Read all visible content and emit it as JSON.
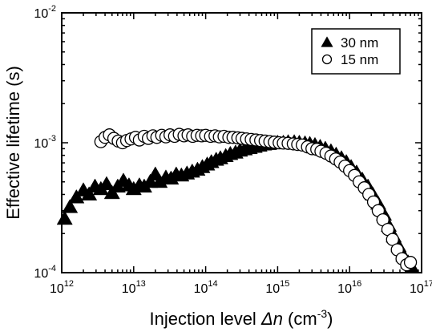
{
  "chart_data": {
    "type": "scatter",
    "xlabel": {
      "main": "Injection level ",
      "italic": "Δn",
      "unit_open": " (cm",
      "unit_exp": "-3",
      "unit_close": ")"
    },
    "ylabel": "Effective lifetime (s)",
    "x_scale": "log",
    "y_scale": "log",
    "xlim": [
      1000000000000.0,
      1e+17
    ],
    "ylim": [
      0.0001,
      0.01
    ],
    "x_ticks": [
      {
        "base": "10",
        "exp": "12"
      },
      {
        "base": "10",
        "exp": "13"
      },
      {
        "base": "10",
        "exp": "14"
      },
      {
        "base": "10",
        "exp": "15"
      },
      {
        "base": "10",
        "exp": "16"
      },
      {
        "base": "10",
        "exp": "17"
      }
    ],
    "y_ticks": [
      {
        "base": "10",
        "exp": "-4"
      },
      {
        "base": "10",
        "exp": "-3"
      },
      {
        "base": "10",
        "exp": "-2"
      }
    ],
    "grid": false,
    "legend_position": "top-right",
    "series": [
      {
        "name": "30 nm",
        "marker": "filled-triangle",
        "color": "#000000",
        "points": [
          [
            1100000000000.0,
            0.00026
          ],
          [
            1300000000000.0,
            0.00032
          ],
          [
            1600000000000.0,
            0.00038
          ],
          [
            2000000000000.0,
            0.00043
          ],
          [
            2400000000000.0,
            0.0004
          ],
          [
            2900000000000.0,
            0.00046
          ],
          [
            3500000000000.0,
            0.00044
          ],
          [
            4200000000000.0,
            0.00048
          ],
          [
            5000000000000.0,
            0.00041
          ],
          [
            6000000000000.0,
            0.00046
          ],
          [
            7200000000000.0,
            0.00051
          ],
          [
            8600000000000.0,
            0.00047
          ],
          [
            10000000000000.0,
            0.00044
          ],
          [
            12000000000000.0,
            0.00047
          ],
          [
            14000000000000.0,
            0.00046
          ],
          [
            17000000000000.0,
            0.0005
          ],
          [
            20000000000000.0,
            0.00057
          ],
          [
            23000000000000.0,
            0.0005
          ],
          [
            28000000000000.0,
            0.00054
          ],
          [
            33000000000000.0,
            0.00053
          ],
          [
            39000000000000.0,
            0.00057
          ],
          [
            46000000000000.0,
            0.00056
          ],
          [
            55000000000000.0,
            0.00058
          ],
          [
            65000000000000.0,
            0.0006
          ],
          [
            77000000000000.0,
            0.00062
          ],
          [
            90000000000000.0,
            0.00065
          ],
          [
            105000000000000.0,
            0.00068
          ],
          [
            120000000000000.0,
            0.00071
          ],
          [
            140000000000000.0,
            0.00074
          ],
          [
            160000000000000.0,
            0.00076
          ],
          [
            190000000000000.0,
            0.00079
          ],
          [
            220000000000000.0,
            0.00082
          ],
          [
            260000000000000.0,
            0.00084
          ],
          [
            300000000000000.0,
            0.00087
          ],
          [
            350000000000000.0,
            0.00089
          ],
          [
            410000000000000.0,
            0.00091
          ],
          [
            480000000000000.0,
            0.00093
          ],
          [
            560000000000000.0,
            0.00095
          ],
          [
            650000000000000.0,
            0.00097
          ],
          [
            760000000000000.0,
            0.00098
          ],
          [
            890000000000000.0,
            0.00099
          ],
          [
            1000000000000000.0,
            0.001
          ],
          [
            1200000000000000.0,
            0.001
          ],
          [
            1400000000000000.0,
            0.00101
          ],
          [
            1700000000000000.0,
            0.00101
          ],
          [
            2000000000000000.0,
            0.001
          ],
          [
            2400000000000000.0,
            0.00099
          ],
          [
            2800000000000000.0,
            0.00098
          ],
          [
            3300000000000000.0,
            0.00096
          ],
          [
            3900000000000000.0,
            0.00093
          ],
          [
            4600000000000000.0,
            0.0009
          ],
          [
            5500000000000000.0,
            0.00086
          ],
          [
            6500000000000000.0,
            0.00081
          ],
          [
            7700000000000000.0,
            0.00076
          ],
          [
            9000000000000000.0,
            0.00071
          ],
          [
            1.05e+16,
            0.00065
          ],
          [
            1.25e+16,
            0.00059
          ],
          [
            1.5e+16,
            0.00052
          ],
          [
            1.8e+16,
            0.00046
          ],
          [
            2.1e+16,
            0.0004
          ],
          [
            2.5e+16,
            0.00034
          ],
          [
            3e+16,
            0.00028
          ],
          [
            3.5e+16,
            0.00023
          ],
          [
            4.1e+16,
            0.00019
          ],
          [
            4.8e+16,
            0.00016
          ],
          [
            5.6e+16,
            0.000135
          ],
          [
            6.5e+16,
            0.00012
          ],
          [
            7.3e+16,
            0.00011
          ]
        ]
      },
      {
        "name": "15 nm",
        "marker": "open-circle",
        "color": "#000000",
        "points": [
          [
            3500000000000.0,
            0.00102
          ],
          [
            4000000000000.0,
            0.0011
          ],
          [
            4600000000000.0,
            0.00115
          ],
          [
            5300000000000.0,
            0.00108
          ],
          [
            6100000000000.0,
            0.00103
          ],
          [
            7000000000000.0,
            0.001
          ],
          [
            8000000000000.0,
            0.00104
          ],
          [
            9200000000000.0,
            0.00107
          ],
          [
            10600000000000.0,
            0.0011
          ],
          [
            12000000000000.0,
            0.00105
          ],
          [
            14000000000000.0,
            0.00112
          ],
          [
            16000000000000.0,
            0.00108
          ],
          [
            18500000000000.0,
            0.00113
          ],
          [
            21000000000000.0,
            0.0011
          ],
          [
            24500000000000.0,
            0.00114
          ],
          [
            28000000000000.0,
            0.00111
          ],
          [
            32000000000000.0,
            0.00115
          ],
          [
            37000000000000.0,
            0.00112
          ],
          [
            43000000000000.0,
            0.00116
          ],
          [
            50000000000000.0,
            0.00113
          ],
          [
            57000000000000.0,
            0.00115
          ],
          [
            66000000000000.0,
            0.00112
          ],
          [
            76000000000000.0,
            0.00114
          ],
          [
            88000000000000.0,
            0.00113
          ],
          [
            100000000000000.0,
            0.00114
          ],
          [
            117000000000000.0,
            0.00112
          ],
          [
            135000000000000.0,
            0.00113
          ],
          [
            155000000000000.0,
            0.00111
          ],
          [
            180000000000000.0,
            0.00112
          ],
          [
            210000000000000.0,
            0.0011
          ],
          [
            240000000000000.0,
            0.0011
          ],
          [
            280000000000000.0,
            0.00109
          ],
          [
            320000000000000.0,
            0.00108
          ],
          [
            370000000000000.0,
            0.00107
          ],
          [
            430000000000000.0,
            0.00106
          ],
          [
            500000000000000.0,
            0.00105
          ],
          [
            580000000000000.0,
            0.00104
          ],
          [
            670000000000000.0,
            0.00103
          ],
          [
            780000000000000.0,
            0.00102
          ],
          [
            900000000000000.0,
            0.00101
          ],
          [
            1050000000000000.0,
            0.001
          ],
          [
            1200000000000000.0,
            0.000995
          ],
          [
            1400000000000000.0,
            0.00099
          ],
          [
            1650000000000000.0,
            0.00098
          ],
          [
            1900000000000000.0,
            0.00097
          ],
          [
            2200000000000000.0,
            0.00096
          ],
          [
            2600000000000000.0,
            0.00093
          ],
          [
            3000000000000000.0,
            0.0009
          ],
          [
            3500000000000000.0,
            0.00089
          ],
          [
            4000000000000000.0,
            0.00086
          ],
          [
            4700000000000000.0,
            0.00083
          ],
          [
            5500000000000000.0,
            0.00079
          ],
          [
            6400000000000000.0,
            0.00075
          ],
          [
            7400000000000000.0,
            0.00071
          ],
          [
            8600000000000000.0,
            0.00066
          ],
          [
            1e+16,
            0.00061
          ],
          [
            1.17e+16,
            0.00056
          ],
          [
            1.36e+16,
            0.0005
          ],
          [
            1.6e+16,
            0.00045
          ],
          [
            1.85e+16,
            0.0004
          ],
          [
            2.15e+16,
            0.00035
          ],
          [
            2.5e+16,
            0.0003
          ],
          [
            2.9e+16,
            0.000255
          ],
          [
            3.4e+16,
            0.000215
          ],
          [
            3.95e+16,
            0.00018
          ],
          [
            4.6e+16,
            0.00015
          ],
          [
            5.35e+16,
            0.000128
          ],
          [
            6.2e+16,
            0.000115
          ],
          [
            7e+16,
            0.00012
          ]
        ]
      }
    ]
  }
}
